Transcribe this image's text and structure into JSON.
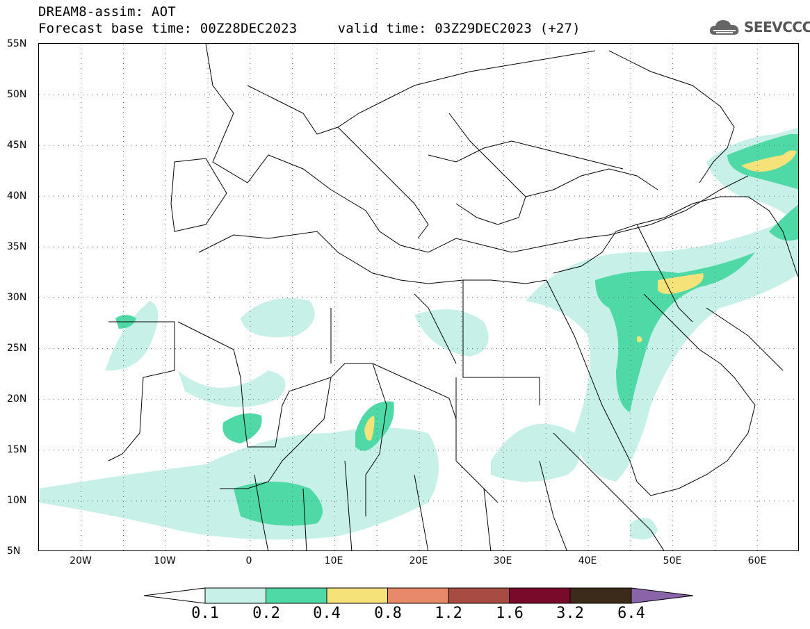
{
  "header": {
    "title_line1": "DREAM8-assim: AOT",
    "title_line2": "Forecast base time: 00Z28DEC2023     valid time: 03Z29DEC2023 (+27)",
    "logo_text": "SEEVCCC",
    "logo_icon": "cloud-icon"
  },
  "map": {
    "lon_range": [
      -25,
      65
    ],
    "lat_range": [
      5,
      55
    ],
    "lat_labels": [
      "55N",
      "50N",
      "45N",
      "40N",
      "35N",
      "30N",
      "25N",
      "20N",
      "15N",
      "10N",
      "5N"
    ],
    "lon_labels": [
      "20W",
      "10W",
      "0",
      "10E",
      "20E",
      "30E",
      "40E",
      "50E",
      "60E"
    ],
    "grid": "dotted"
  },
  "colorbar": {
    "levels": [
      "0.1",
      "0.2",
      "0.4",
      "0.8",
      "1.2",
      "1.6",
      "3.2",
      "6.4"
    ],
    "colors": [
      "#c6f0e8",
      "#4fd9a6",
      "#f5e37a",
      "#e8896a",
      "#a84b42",
      "#7a0a2a",
      "#3c2a1a",
      "#8a64a8"
    ]
  }
}
